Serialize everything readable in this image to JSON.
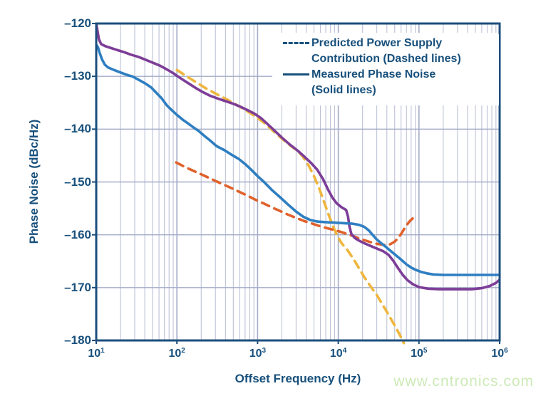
{
  "watermark": {
    "text": "www.cntronics.com",
    "color": "#cdeab8"
  },
  "chart_data": {
    "type": "line",
    "x_scale": "log",
    "title": "",
    "xlabel": "Offset Frequency (Hz)",
    "ylabel": "Phase Noise (dBc/Hz)",
    "xlim": [
      10,
      1000000
    ],
    "ylim": [
      -180,
      -120
    ],
    "grid": {
      "vertical_minor": true,
      "vertical_major": true,
      "horizontal_major": true,
      "minor_color": "#bcc2d6",
      "major_color": "#a3abc8",
      "frame_color": "#1c4e7c"
    },
    "x_ticks": {
      "base": "10",
      "exponents": [
        1,
        2,
        3,
        4,
        5,
        6
      ]
    },
    "y_ticks": [
      {
        "label": "–120",
        "value": -120
      },
      {
        "label": "–130",
        "value": -130
      },
      {
        "label": "–140",
        "value": -140
      },
      {
        "label": "–150",
        "value": -150
      },
      {
        "label": "–160",
        "value": -160
      },
      {
        "label": "–170",
        "value": -170
      },
      {
        "label": "–180",
        "value": -180
      }
    ],
    "legend": {
      "text_color": "#17507c",
      "lines": [
        {
          "marker": "dashed",
          "text": "Predicted Power Supply"
        },
        {
          "marker": "none",
          "text": "Contribution (Dashed lines)"
        },
        {
          "marker": "solid",
          "text": "Measured Phase Noise"
        },
        {
          "marker": "none",
          "text": "(Solid lines)"
        }
      ]
    },
    "series": [
      {
        "name": "measured-phase-noise-upper",
        "legend_group": "Measured Phase Noise (Solid lines)",
        "style": "solid",
        "color": "#7d3d97",
        "points": [
          [
            10,
            -120
          ],
          [
            10.4,
            -121.5
          ],
          [
            10.8,
            -123
          ],
          [
            11.5,
            -123.9
          ],
          [
            13,
            -124.3
          ],
          [
            15,
            -124.6
          ],
          [
            18,
            -125
          ],
          [
            22,
            -125.4
          ],
          [
            27,
            -125.9
          ],
          [
            33,
            -126.3
          ],
          [
            40,
            -126.8
          ],
          [
            50,
            -127.4
          ],
          [
            62,
            -128
          ],
          [
            75,
            -128.7
          ],
          [
            90,
            -129.4
          ],
          [
            100,
            -129.9
          ],
          [
            120,
            -130.7
          ],
          [
            145,
            -131.5
          ],
          [
            175,
            -132.3
          ],
          [
            210,
            -133
          ],
          [
            260,
            -133.7
          ],
          [
            320,
            -134.2
          ],
          [
            400,
            -134.7
          ],
          [
            500,
            -135.2
          ],
          [
            600,
            -135.7
          ],
          [
            750,
            -136.4
          ],
          [
            900,
            -137
          ],
          [
            1100,
            -137.9
          ],
          [
            1300,
            -138.9
          ],
          [
            1600,
            -140.2
          ],
          [
            2000,
            -141.6
          ],
          [
            2500,
            -142.9
          ],
          [
            3100,
            -144
          ],
          [
            3800,
            -145.2
          ],
          [
            4600,
            -146.4
          ],
          [
            5500,
            -147.7
          ],
          [
            6500,
            -149.5
          ],
          [
            7500,
            -151.5
          ],
          [
            8500,
            -153
          ],
          [
            9500,
            -154
          ],
          [
            11000,
            -154.8
          ],
          [
            12500,
            -155.3
          ],
          [
            13200,
            -156.5
          ],
          [
            13800,
            -158.5
          ],
          [
            14500,
            -159.8
          ],
          [
            16000,
            -160.6
          ],
          [
            18000,
            -161.1
          ],
          [
            21000,
            -161.6
          ],
          [
            25000,
            -162.1
          ],
          [
            30000,
            -162.6
          ],
          [
            36000,
            -163.1
          ],
          [
            42000,
            -163.8
          ],
          [
            48000,
            -164.9
          ],
          [
            55000,
            -166.3
          ],
          [
            63000,
            -167.6
          ],
          [
            72000,
            -168.6
          ],
          [
            85000,
            -169.4
          ],
          [
            100000,
            -169.9
          ],
          [
            130000,
            -170.2
          ],
          [
            180000,
            -170.3
          ],
          [
            300000,
            -170.3
          ],
          [
            450000,
            -170.3
          ],
          [
            600000,
            -170.1
          ],
          [
            750000,
            -169.7
          ],
          [
            900000,
            -169.1
          ],
          [
            1000000,
            -168.5
          ]
        ]
      },
      {
        "name": "measured-phase-noise-lower",
        "legend_group": "Measured Phase Noise (Solid lines)",
        "style": "solid",
        "color": "#2e7ec1",
        "points": [
          [
            10,
            -124
          ],
          [
            10.5,
            -124.5
          ],
          [
            11,
            -125.5
          ],
          [
            11.8,
            -126.8
          ],
          [
            12.8,
            -127.8
          ],
          [
            14,
            -128.3
          ],
          [
            16,
            -128.7
          ],
          [
            18,
            -129
          ],
          [
            21,
            -129.4
          ],
          [
            25,
            -129.8
          ],
          [
            28,
            -130
          ],
          [
            33,
            -130.6
          ],
          [
            40,
            -131.3
          ],
          [
            48,
            -132.1
          ],
          [
            57,
            -133.3
          ],
          [
            65,
            -134.2
          ],
          [
            75,
            -135.5
          ],
          [
            85,
            -136.3
          ],
          [
            100,
            -137.3
          ],
          [
            120,
            -138.3
          ],
          [
            140,
            -139
          ],
          [
            165,
            -139.8
          ],
          [
            185,
            -140.3
          ],
          [
            220,
            -141.3
          ],
          [
            260,
            -142.2
          ],
          [
            310,
            -143.2
          ],
          [
            390,
            -144
          ],
          [
            470,
            -144.8
          ],
          [
            580,
            -145.6
          ],
          [
            700,
            -146.6
          ],
          [
            850,
            -147.8
          ],
          [
            1000,
            -148.9
          ],
          [
            1200,
            -150
          ],
          [
            1500,
            -151.5
          ],
          [
            1900,
            -152.9
          ],
          [
            2400,
            -154.3
          ],
          [
            3000,
            -155.6
          ],
          [
            3700,
            -156.6
          ],
          [
            4500,
            -157.2
          ],
          [
            5500,
            -157.5
          ],
          [
            7000,
            -157.6
          ],
          [
            9000,
            -157.7
          ],
          [
            12000,
            -157.8
          ],
          [
            15000,
            -157.9
          ],
          [
            18000,
            -158.1
          ],
          [
            21000,
            -158.5
          ],
          [
            24000,
            -159.2
          ],
          [
            27000,
            -160.1
          ],
          [
            30000,
            -160.9
          ],
          [
            34000,
            -161.6
          ],
          [
            39000,
            -162.3
          ],
          [
            45000,
            -163.1
          ],
          [
            52000,
            -163.9
          ],
          [
            60000,
            -164.7
          ],
          [
            70000,
            -165.6
          ],
          [
            80000,
            -166.2
          ],
          [
            90000,
            -166.6
          ],
          [
            105000,
            -167
          ],
          [
            125000,
            -167.3
          ],
          [
            150000,
            -167.5
          ],
          [
            200000,
            -167.6
          ],
          [
            300000,
            -167.6
          ],
          [
            500000,
            -167.6
          ],
          [
            750000,
            -167.6
          ],
          [
            1000000,
            -167.6
          ]
        ]
      },
      {
        "name": "predicted-supply-contribution-upper",
        "legend_group": "Predicted Power Supply Contribution (Dashed lines)",
        "style": "dashed",
        "color": "#eeb63e",
        "points": [
          [
            100,
            -128.8
          ],
          [
            115,
            -129.4
          ],
          [
            135,
            -130.1
          ],
          [
            160,
            -130.8
          ],
          [
            190,
            -131.5
          ],
          [
            230,
            -132.3
          ],
          [
            280,
            -133
          ],
          [
            340,
            -133.7
          ],
          [
            420,
            -134.4
          ],
          [
            520,
            -135.2
          ],
          [
            640,
            -136
          ],
          [
            800,
            -136.9
          ],
          [
            1000,
            -137.9
          ],
          [
            1250,
            -139
          ],
          [
            1550,
            -140.3
          ],
          [
            1900,
            -141.5
          ],
          [
            2400,
            -142.8
          ],
          [
            3000,
            -143.9
          ],
          [
            3600,
            -145.1
          ],
          [
            4300,
            -146.9
          ],
          [
            5000,
            -148.9
          ],
          [
            5800,
            -151.2
          ],
          [
            6600,
            -153.6
          ],
          [
            7500,
            -156
          ],
          [
            8500,
            -158.2
          ],
          [
            9700,
            -160.2
          ],
          [
            11000,
            -161.6
          ],
          [
            13000,
            -162.9
          ],
          [
            15500,
            -164.6
          ],
          [
            18000,
            -166.3
          ],
          [
            21000,
            -168
          ],
          [
            25000,
            -169.7
          ],
          [
            30000,
            -171.4
          ],
          [
            36000,
            -173.4
          ],
          [
            43000,
            -175.4
          ],
          [
            51000,
            -177.4
          ],
          [
            59000,
            -179.2
          ],
          [
            65000,
            -180.5
          ]
        ]
      },
      {
        "name": "predicted-supply-contribution-lower",
        "legend_group": "Predicted Power Supply Contribution (Dashed lines)",
        "style": "dashed",
        "color": "#e0622c",
        "points": [
          [
            98,
            -146.3
          ],
          [
            120,
            -147
          ],
          [
            150,
            -147.7
          ],
          [
            190,
            -148.4
          ],
          [
            240,
            -149.1
          ],
          [
            300,
            -149.8
          ],
          [
            380,
            -150.5
          ],
          [
            480,
            -151.2
          ],
          [
            600,
            -151.9
          ],
          [
            750,
            -152.6
          ],
          [
            950,
            -153.4
          ],
          [
            1200,
            -154.1
          ],
          [
            1500,
            -154.8
          ],
          [
            1900,
            -155.5
          ],
          [
            2400,
            -156.2
          ],
          [
            3000,
            -156.8
          ],
          [
            3800,
            -157.4
          ],
          [
            4800,
            -157.9
          ],
          [
            6000,
            -158.4
          ],
          [
            7500,
            -158.8
          ],
          [
            9500,
            -159.2
          ],
          [
            12000,
            -159.7
          ],
          [
            15000,
            -160.2
          ],
          [
            19000,
            -160.8
          ],
          [
            24000,
            -161.3
          ],
          [
            30000,
            -161.7
          ],
          [
            37000,
            -161.9
          ],
          [
            44000,
            -161.8
          ],
          [
            50000,
            -161.3
          ],
          [
            56000,
            -160.5
          ],
          [
            62000,
            -159.5
          ],
          [
            68000,
            -158.5
          ],
          [
            75000,
            -157.6
          ],
          [
            82000,
            -157
          ],
          [
            88000,
            -156.7
          ]
        ]
      }
    ]
  }
}
